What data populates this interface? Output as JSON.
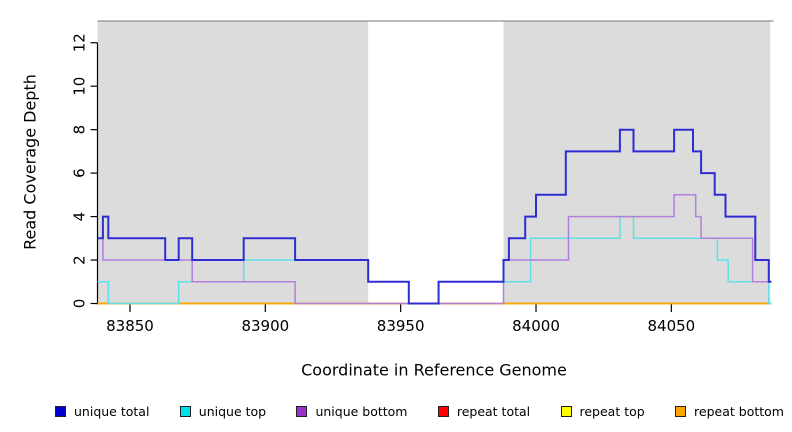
{
  "chart_data": {
    "type": "step",
    "title": "",
    "xlabel": "Coordinate in Reference Genome",
    "ylabel": "Read Coverage Depth",
    "xlim": [
      83838,
      84087
    ],
    "ylim": [
      0,
      13
    ],
    "x_ticks": [
      83850,
      83900,
      83950,
      84000,
      84050
    ],
    "y_ticks": [
      0,
      2,
      4,
      6,
      8,
      10,
      12
    ],
    "grid": false,
    "background_color": "#ffffff",
    "shaded_regions": [
      {
        "from": 83838,
        "to": 83938,
        "color": "#dcdcdc"
      },
      {
        "from": 83988,
        "to": 84086.5,
        "color": "#dcdcdc"
      }
    ],
    "top_border_color": "#909090",
    "series": [
      {
        "name": "repeat total",
        "line_color": "#ff0000",
        "width": 1.4,
        "steps": [
          [
            83838,
            0
          ]
        ]
      },
      {
        "name": "repeat top",
        "line_color": "#ffff00",
        "width": 1.4,
        "steps": [
          [
            83838,
            0
          ]
        ]
      },
      {
        "name": "repeat bottom",
        "line_color": "#ffa500",
        "width": 1.6,
        "steps": [
          [
            83838,
            0
          ]
        ]
      },
      {
        "name": "unique top",
        "line_color": "#5fe0ea",
        "width": 1.5,
        "steps": [
          [
            83838,
            1
          ],
          [
            83842,
            0
          ],
          [
            83868,
            1
          ],
          [
            83892,
            2
          ],
          [
            83938,
            1
          ],
          [
            83953,
            0
          ],
          [
            83964,
            1
          ],
          [
            83998,
            3
          ],
          [
            84031,
            4
          ],
          [
            84036,
            3
          ],
          [
            84067,
            2
          ],
          [
            84071,
            1
          ],
          [
            84086,
            0
          ]
        ]
      },
      {
        "name": "unique bottom",
        "line_color": "#b27fdd",
        "width": 1.5,
        "steps": [
          [
            83838,
            3
          ],
          [
            83840,
            2
          ],
          [
            83873,
            1
          ],
          [
            83911,
            0
          ],
          [
            83988,
            2
          ],
          [
            84012,
            4
          ],
          [
            84051,
            5
          ],
          [
            84059,
            4
          ],
          [
            84061,
            3
          ],
          [
            84080,
            1
          ]
        ]
      },
      {
        "name": "unique total",
        "line_color": "#2d2dd2",
        "width": 2,
        "steps": [
          [
            83838,
            3
          ],
          [
            83840,
            4
          ],
          [
            83842,
            3
          ],
          [
            83863,
            2
          ],
          [
            83868,
            3
          ],
          [
            83873,
            2
          ],
          [
            83892,
            3
          ],
          [
            83911,
            2
          ],
          [
            83938,
            1
          ],
          [
            83953,
            0
          ],
          [
            83964,
            1
          ],
          [
            83988,
            2
          ],
          [
            83990,
            3
          ],
          [
            83996,
            4
          ],
          [
            84000,
            5
          ],
          [
            84011,
            7
          ],
          [
            84031,
            8
          ],
          [
            84036,
            7
          ],
          [
            84051,
            8
          ],
          [
            84058,
            7
          ],
          [
            84061,
            6
          ],
          [
            84066,
            5
          ],
          [
            84070,
            4
          ],
          [
            84081,
            2
          ],
          [
            84086,
            1
          ]
        ]
      }
    ]
  },
  "axis": {
    "xlabel": "Coordinate in Reference Genome",
    "ylabel": "Read Coverage Depth"
  },
  "legend": {
    "items": [
      {
        "label": "unique total",
        "color": "#0000cc"
      },
      {
        "label": "unique top",
        "color": "#00e0ee"
      },
      {
        "label": "unique bottom",
        "color": "#9932cc"
      },
      {
        "label": "repeat total",
        "color": "#ff0000"
      },
      {
        "label": "repeat top",
        "color": "#ffff00"
      },
      {
        "label": "repeat bottom",
        "color": "#ffa500"
      }
    ]
  }
}
